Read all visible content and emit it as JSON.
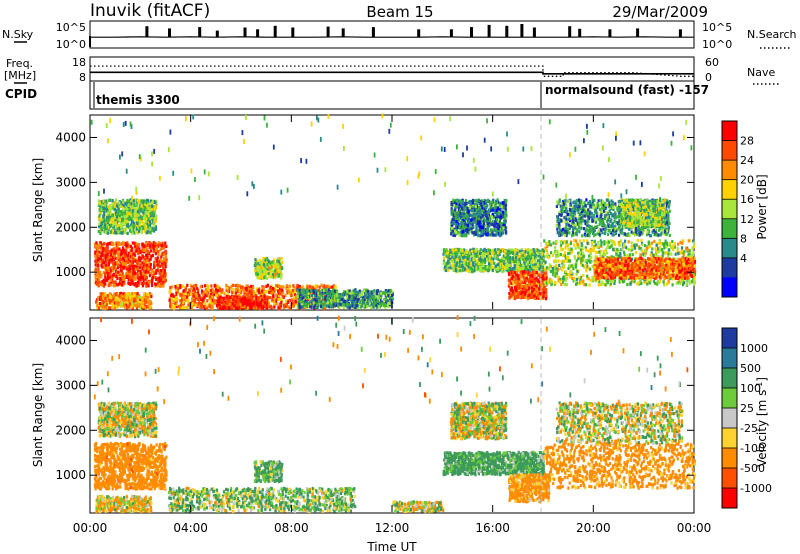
{
  "header": {
    "station": "Inuvik (fitACF)",
    "beam": "Beam 15",
    "date": "29/Mar/2009"
  },
  "top_panel": {
    "left_label": "N.Sky",
    "right_label": "N.Search",
    "left_ticks": [
      "10^5",
      "10^0"
    ],
    "right_ticks": [
      "10^5",
      "10^0"
    ]
  },
  "freq_panel": {
    "left_label_1": "Freq.",
    "left_label_2": "[MHz]",
    "right_label": "Nave",
    "left_ticks": [
      "18",
      "8"
    ],
    "right_ticks": [
      "60",
      "0"
    ]
  },
  "cpid_panel": {
    "label": "CPID",
    "program_1": "themis 3300",
    "program_2": "normalsound (fast) -157"
  },
  "x_axis": {
    "title": "Time UT",
    "tick_labels": [
      "00:00",
      "04:00",
      "08:00",
      "12:00",
      "16:00",
      "20:00",
      "00:00"
    ]
  },
  "power_colorbar": {
    "title": "Power [dB]",
    "labels": [
      "28",
      "24",
      "20",
      "16",
      "12",
      "8",
      "4"
    ],
    "colors": [
      "#ff0000",
      "#ff4800",
      "#ff8c00",
      "#ffd200",
      "#a8e63c",
      "#3cb43c",
      "#2a8a8a",
      "#1e3ca0",
      "#0000ff"
    ]
  },
  "velocity_colorbar": {
    "title": "Velocity [m s",
    "title_sup": "-1",
    "title_end": "]",
    "labels": [
      "1000",
      "500",
      "100",
      "25",
      "-25",
      "-100",
      "-500",
      "-1000"
    ],
    "colors": [
      "#1e3ca0",
      "#2a7a9a",
      "#3c9a5a",
      "#6ccc3c",
      "#c8c8c8",
      "#ffd232",
      "#ff8c00",
      "#ff5000",
      "#ff0000"
    ]
  },
  "chart_data": [
    {
      "type": "line",
      "title": "Inuvik (fitACF) Beam 15 29/Mar/2009",
      "xlabel": "",
      "ylabel": "N.Sky",
      "y_scale": "log",
      "y_ticks": [
        "10^0",
        "10^5"
      ],
      "x_range": [
        0,
        24
      ],
      "x": [
        0,
        1,
        2,
        3,
        4,
        5,
        6,
        7,
        8,
        9,
        10,
        11,
        12,
        13,
        14,
        15,
        16,
        17,
        18,
        19,
        20,
        21,
        22,
        23,
        24
      ],
      "values": [
        2.0,
        2.0,
        2.1,
        2.0,
        2.1,
        2.0,
        2.1,
        2.0,
        2.0,
        2.0,
        2.1,
        2.0,
        2.0,
        2.0,
        2.1,
        2.0,
        2.0,
        2.0,
        2.0,
        2.0,
        2.1,
        2.0,
        2.1,
        2.0,
        2.0
      ],
      "spikes": [
        [
          2.2,
          4.5
        ],
        [
          3.1,
          4.0
        ],
        [
          4.3,
          4.3
        ],
        [
          5.0,
          3.5
        ],
        [
          6.1,
          4.2
        ],
        [
          6.6,
          3.8
        ],
        [
          7.3,
          4.6
        ],
        [
          8.0,
          4.2
        ],
        [
          9.4,
          4.4
        ],
        [
          10.0,
          4.0
        ],
        [
          11.2,
          4.3
        ],
        [
          13.0,
          3.8
        ],
        [
          14.3,
          3.8
        ],
        [
          15.1,
          4.3
        ],
        [
          15.8,
          4.8
        ],
        [
          16.5,
          4.6
        ],
        [
          17.1,
          5.0
        ],
        [
          17.6,
          4.2
        ],
        [
          19.0,
          4.5
        ],
        [
          19.4,
          3.9
        ],
        [
          20.6,
          3.8
        ],
        [
          21.7,
          4.0
        ],
        [
          23.4,
          3.8
        ]
      ]
    },
    {
      "type": "line",
      "title": "",
      "ylabel": "Freq. [MHz] / Nave",
      "x_range": [
        0,
        24
      ],
      "freq_mhz": {
        "x": [
          0,
          18,
          18,
          24
        ],
        "y": [
          11.5,
          11.5,
          10.8,
          10.8
        ]
      },
      "nave": {
        "x": [
          0,
          18,
          18,
          18.8,
          18.8,
          21.6,
          21.6,
          23.5,
          23.5,
          24
        ],
        "y": [
          38,
          38,
          10,
          10,
          20,
          20,
          20,
          10,
          10,
          10
        ]
      }
    },
    {
      "type": "heatmap",
      "title": "Power [dB]",
      "xlabel": "Time UT",
      "ylabel": "Slant Range [km]",
      "x_range": [
        0,
        24
      ],
      "y_range": [
        180,
        4500
      ],
      "y_ticks": [
        1000,
        2000,
        3000,
        4000
      ],
      "value_range": [
        0,
        30
      ],
      "regions": [
        {
          "t0": 0.15,
          "t1": 3.0,
          "r0": 680,
          "r1": 1650,
          "v": 26
        },
        {
          "t0": 0.2,
          "t1": 2.4,
          "r0": 180,
          "r1": 520,
          "v": 22
        },
        {
          "t0": 0.3,
          "t1": 2.6,
          "r0": 1850,
          "r1": 2600,
          "v": 13
        },
        {
          "t0": 3.1,
          "t1": 9.8,
          "r0": 180,
          "r1": 700,
          "v": 23
        },
        {
          "t0": 5.0,
          "t1": 7.0,
          "r0": 180,
          "r1": 450,
          "v": 28
        },
        {
          "t0": 6.5,
          "t1": 7.6,
          "r0": 850,
          "r1": 1300,
          "v": 15
        },
        {
          "t0": 8.2,
          "t1": 12.0,
          "r0": 200,
          "r1": 600,
          "v": 10
        },
        {
          "t0": 14.0,
          "t1": 18.0,
          "r0": 1000,
          "r1": 1500,
          "v": 13
        },
        {
          "t0": 14.3,
          "t1": 16.5,
          "r0": 1800,
          "r1": 2600,
          "v": 8
        },
        {
          "t0": 16.6,
          "t1": 18.1,
          "r0": 400,
          "r1": 1000,
          "v": 25
        },
        {
          "t0": 18.0,
          "t1": 24.0,
          "r0": 700,
          "r1": 1700,
          "v": 15
        },
        {
          "t0": 20.0,
          "t1": 24.0,
          "r0": 850,
          "r1": 1300,
          "v": 24
        },
        {
          "t0": 18.5,
          "t1": 23.0,
          "r0": 1800,
          "r1": 2600,
          "v": 9
        },
        {
          "t0": 21.0,
          "t1": 22.8,
          "r0": 2000,
          "r1": 2600,
          "v": 14
        }
      ]
    },
    {
      "type": "heatmap",
      "title": "Velocity [m s-1]",
      "xlabel": "Time UT",
      "ylabel": "Slant Range [km]",
      "x_range": [
        0,
        24
      ],
      "y_range": [
        180,
        4500
      ],
      "y_ticks": [
        1000,
        2000,
        3000,
        4000
      ],
      "value_range": [
        -1000,
        1000
      ],
      "regions": [
        {
          "t0": 0.15,
          "t1": 3.0,
          "r0": 680,
          "r1": 1700,
          "v": -300
        },
        {
          "t0": 0.2,
          "t1": 2.4,
          "r0": 180,
          "r1": 520,
          "v": -100
        },
        {
          "t0": 0.3,
          "t1": 2.6,
          "r0": 1850,
          "r1": 2600,
          "v": 0
        },
        {
          "t0": 3.1,
          "t1": 10.5,
          "r0": 180,
          "r1": 700,
          "v": 80
        },
        {
          "t0": 6.5,
          "t1": 7.6,
          "r0": 850,
          "r1": 1300,
          "v": 150
        },
        {
          "t0": 12.0,
          "t1": 14.0,
          "r0": 180,
          "r1": 400,
          "v": 0
        },
        {
          "t0": 14.0,
          "t1": 18.0,
          "r0": 1000,
          "r1": 1500,
          "v": 200
        },
        {
          "t0": 14.3,
          "t1": 16.5,
          "r0": 1800,
          "r1": 2600,
          "v": 0
        },
        {
          "t0": 16.6,
          "t1": 18.2,
          "r0": 400,
          "r1": 1000,
          "v": -200
        },
        {
          "t0": 18.0,
          "t1": 24.0,
          "r0": 700,
          "r1": 1700,
          "v": -250
        },
        {
          "t0": 18.5,
          "t1": 23.5,
          "r0": 1700,
          "r1": 2600,
          "v": 0
        }
      ]
    }
  ]
}
